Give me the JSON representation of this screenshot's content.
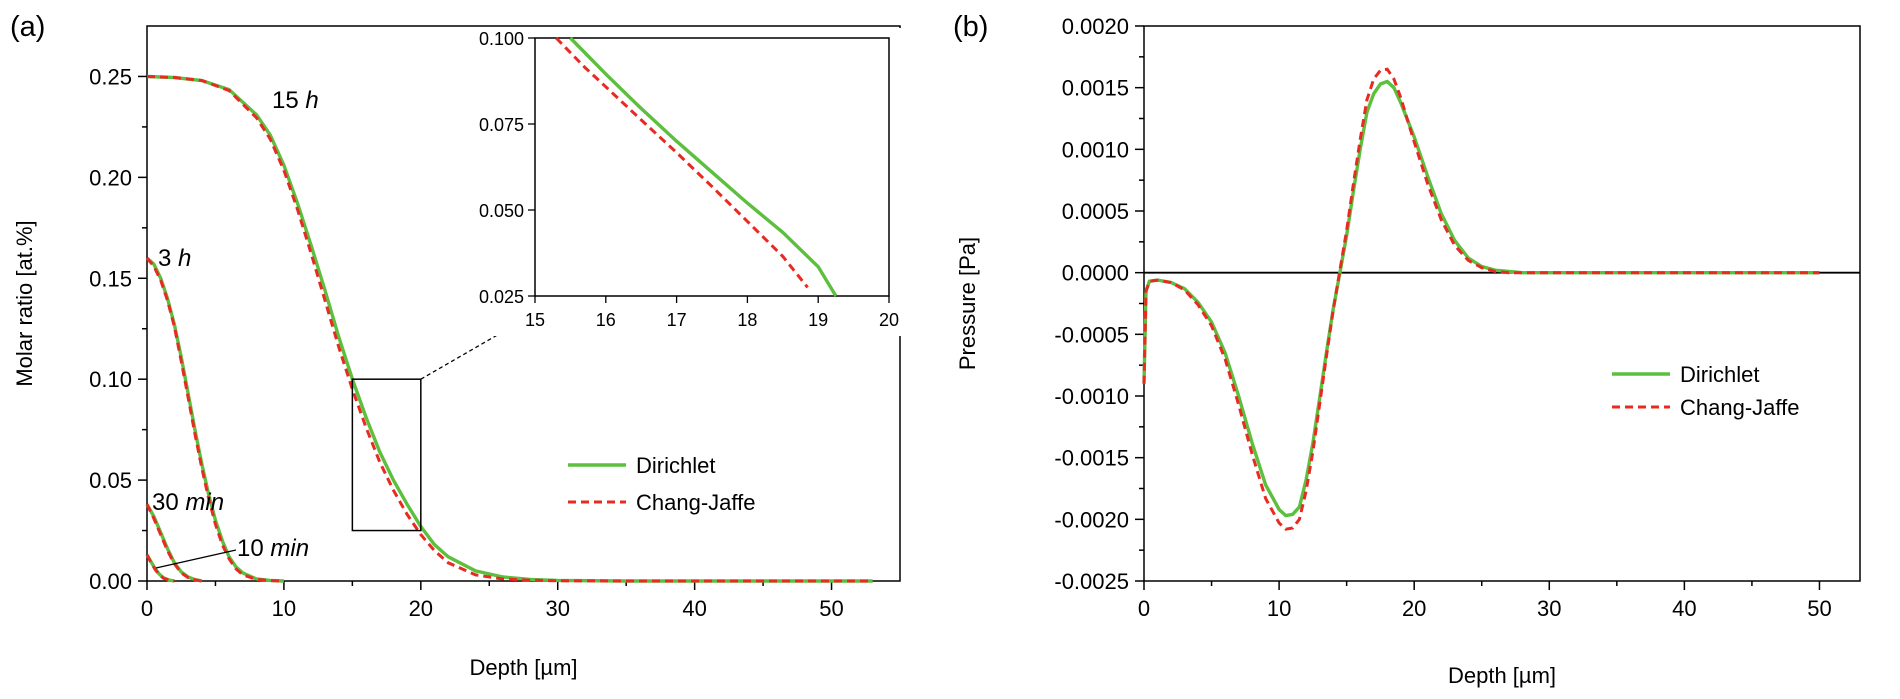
{
  "figure": {
    "panel_a_label": "(a)",
    "panel_b_label": "(b)"
  },
  "colors": {
    "dirichlet": "#5cbf3e",
    "chang_jaffe": "#e82a22",
    "axis": "#000000"
  },
  "chart_data": [
    {
      "type": "line",
      "panel": "(a)",
      "title": "",
      "xlabel": "Depth [µm]",
      "ylabel": "Molar ratio [at.%]",
      "xlim": [
        0,
        55
      ],
      "ylim": [
        0,
        0.275
      ],
      "xticks": [
        "0",
        "10",
        "20",
        "30",
        "40",
        "50"
      ],
      "yticks": [
        "0.00",
        "0.05",
        "0.10",
        "0.15",
        "0.20",
        "0.25"
      ],
      "legend": {
        "position": "center-right",
        "entries": [
          "Dirichlet",
          "Chang-Jaffe"
        ]
      },
      "annotations": [
        {
          "num": "15",
          "unit": "h"
        },
        {
          "num": "3",
          "unit": "h"
        },
        {
          "num": "30",
          "unit": "min"
        },
        {
          "num": "10",
          "unit": "min"
        }
      ],
      "zoom_box": {
        "x": [
          15,
          20
        ],
        "y": [
          0.025,
          0.1
        ]
      },
      "series": [
        {
          "name": "Dirichlet",
          "curve": "15 h",
          "x": [
            0,
            2,
            4,
            6,
            8,
            9,
            10,
            11,
            12,
            13,
            14,
            15,
            16,
            17,
            18,
            19,
            20,
            21,
            22,
            24,
            26,
            28,
            30,
            35,
            40,
            45,
            50,
            53
          ],
          "y": [
            0.25,
            0.2495,
            0.248,
            0.2435,
            0.231,
            0.221,
            0.206,
            0.187,
            0.166,
            0.144,
            0.121,
            0.1,
            0.081,
            0.064,
            0.05,
            0.038,
            0.027,
            0.018,
            0.012,
            0.005,
            0.002,
            0.0008,
            0.0003,
            0,
            0,
            0,
            0,
            0
          ]
        },
        {
          "name": "Chang-Jaffe",
          "curve": "15 h",
          "x": [
            0,
            2,
            4,
            6,
            8,
            9,
            10,
            11,
            12,
            13,
            14,
            15,
            16,
            17,
            18,
            19,
            20,
            21,
            22,
            24,
            26,
            28,
            30,
            35,
            40,
            45,
            50,
            53
          ],
          "y": [
            0.25,
            0.2495,
            0.248,
            0.243,
            0.2295,
            0.219,
            0.2035,
            0.184,
            0.162,
            0.139,
            0.116,
            0.095,
            0.076,
            0.059,
            0.045,
            0.033,
            0.023,
            0.015,
            0.009,
            0.003,
            0.001,
            0.0004,
            0.0001,
            0,
            0,
            0,
            0,
            0
          ]
        },
        {
          "name": "Dirichlet",
          "curve": "3 h",
          "x": [
            0,
            0.5,
            1,
            1.5,
            2,
            2.5,
            3,
            3.5,
            4,
            4.5,
            5,
            5.5,
            6,
            6.5,
            7,
            8,
            9,
            10
          ],
          "y": [
            0.16,
            0.157,
            0.15,
            0.14,
            0.127,
            0.111,
            0.093,
            0.075,
            0.058,
            0.043,
            0.03,
            0.02,
            0.012,
            0.007,
            0.004,
            0.001,
            0.0003,
            0
          ]
        },
        {
          "name": "Chang-Jaffe",
          "curve": "3 h",
          "x": [
            0,
            0.5,
            1,
            1.5,
            2,
            2.5,
            3,
            3.5,
            4,
            4.5,
            5,
            5.5,
            6,
            6.5,
            7,
            8,
            9,
            10
          ],
          "y": [
            0.16,
            0.156,
            0.149,
            0.139,
            0.126,
            0.109,
            0.091,
            0.073,
            0.056,
            0.041,
            0.028,
            0.018,
            0.011,
            0.006,
            0.003,
            0.0008,
            0.0002,
            0
          ]
        },
        {
          "name": "Dirichlet",
          "curve": "30 min",
          "x": [
            0,
            0.5,
            1,
            1.5,
            2,
            2.5,
            3,
            3.5,
            4
          ],
          "y": [
            0.038,
            0.032,
            0.024,
            0.016,
            0.009,
            0.0045,
            0.002,
            0.0007,
            0
          ]
        },
        {
          "name": "Chang-Jaffe",
          "curve": "30 min",
          "x": [
            0,
            0.5,
            1,
            1.5,
            2,
            2.5,
            3,
            3.5,
            4
          ],
          "y": [
            0.038,
            0.031,
            0.023,
            0.015,
            0.0085,
            0.004,
            0.0017,
            0.0006,
            0
          ]
        },
        {
          "name": "Dirichlet",
          "curve": "10 min",
          "x": [
            0,
            0.3,
            0.6,
            0.9,
            1.2,
            1.6,
            2
          ],
          "y": [
            0.013,
            0.0095,
            0.006,
            0.0034,
            0.0016,
            0.0005,
            0
          ]
        },
        {
          "name": "Chang-Jaffe",
          "curve": "10 min",
          "x": [
            0,
            0.3,
            0.6,
            0.9,
            1.2,
            1.6,
            2
          ],
          "y": [
            0.013,
            0.009,
            0.0057,
            0.0031,
            0.0014,
            0.0004,
            0
          ]
        }
      ]
    },
    {
      "type": "line",
      "panel": "(a) inset",
      "title": "",
      "xlabel": "",
      "ylabel": "",
      "xlim": [
        15,
        20
      ],
      "ylim": [
        0.025,
        0.1
      ],
      "xticks": [
        "15",
        "16",
        "17",
        "18",
        "19",
        "20"
      ],
      "yticks": [
        "0.025",
        "0.050",
        "0.075",
        "0.100"
      ],
      "series": [
        {
          "name": "Dirichlet",
          "x": [
            15.5,
            16,
            16.5,
            17,
            17.5,
            18,
            18.5,
            19,
            19.25
          ],
          "y": [
            0.1,
            0.0895,
            0.0795,
            0.07,
            0.061,
            0.052,
            0.0435,
            0.0335,
            0.025
          ]
        },
        {
          "name": "Chang-Jaffe",
          "x": [
            15.3,
            15.7,
            16,
            16.5,
            17,
            17.5,
            18,
            18.5,
            18.85
          ],
          "y": [
            0.1,
            0.0915,
            0.0858,
            0.0762,
            0.0667,
            0.0568,
            0.0467,
            0.0365,
            0.0275
          ]
        }
      ]
    },
    {
      "type": "line",
      "panel": "(b)",
      "title": "",
      "xlabel": "Depth [µm]",
      "ylabel": "Pressure [Pa]",
      "xlim": [
        0,
        53
      ],
      "ylim": [
        -0.0025,
        0.002
      ],
      "xticks": [
        "0",
        "10",
        "20",
        "30",
        "40",
        "50"
      ],
      "yticks": [
        "-0.0025",
        "-0.0020",
        "-0.0015",
        "-0.0010",
        "-0.0005",
        "0.0000",
        "0.0005",
        "0.0010",
        "0.0015",
        "0.0020"
      ],
      "reference_line_y": 0,
      "legend": {
        "position": "center-right",
        "entries": [
          "Dirichlet",
          "Chang-Jaffe"
        ]
      },
      "series": [
        {
          "name": "Dirichlet",
          "x": [
            0,
            0.15,
            0.4,
            1,
            2,
            3,
            4,
            5,
            6,
            7,
            8,
            9,
            10,
            10.5,
            11,
            11.5,
            12,
            12.5,
            13,
            13.5,
            14,
            14.5,
            15,
            15.5,
            16,
            16.5,
            17,
            17.5,
            18,
            18.5,
            19,
            19.5,
            20,
            21,
            22,
            23,
            24,
            25,
            26,
            27,
            28,
            30,
            35,
            40,
            45,
            50
          ],
          "y": [
            -0.0009,
            -0.00015,
            -7e-05,
            -6e-05,
            -8e-05,
            -0.00013,
            -0.00024,
            -0.0004,
            -0.00065,
            -0.001,
            -0.00138,
            -0.00172,
            -0.00192,
            -0.00197,
            -0.00196,
            -0.0019,
            -0.00168,
            -0.00138,
            -0.00102,
            -0.00065,
            -0.0003,
            0,
            0.0003,
            0.00066,
            0.001,
            0.0013,
            0.00145,
            0.00153,
            0.00155,
            0.0015,
            0.00138,
            0.00124,
            0.0011,
            0.00078,
            0.00048,
            0.00026,
            0.00012,
            5e-05,
            2e-05,
            1e-05,
            0,
            0,
            0,
            0,
            0,
            0
          ]
        },
        {
          "name": "Chang-Jaffe",
          "x": [
            0,
            0.15,
            0.4,
            1,
            2,
            3,
            4,
            5,
            6,
            7,
            8,
            9,
            10,
            10.5,
            11,
            11.5,
            12,
            12.5,
            13,
            13.5,
            14,
            14.5,
            15,
            15.5,
            16,
            16.5,
            17,
            17.5,
            18,
            18.5,
            19,
            19.5,
            20,
            21,
            22,
            23,
            24,
            25,
            26,
            27,
            28,
            30,
            35,
            40,
            45,
            50
          ],
          "y": [
            -0.0009,
            -0.00015,
            -7e-05,
            -6e-05,
            -8e-05,
            -0.00014,
            -0.00026,
            -0.00043,
            -0.0007,
            -0.00107,
            -0.00147,
            -0.00183,
            -0.00203,
            -0.00208,
            -0.00207,
            -0.002,
            -0.00177,
            -0.00145,
            -0.00107,
            -0.00068,
            -0.00031,
            2e-05,
            0.00034,
            0.00072,
            0.00108,
            0.0014,
            0.00157,
            0.00164,
            0.00165,
            0.00157,
            0.00142,
            0.00124,
            0.00106,
            0.00072,
            0.00043,
            0.00022,
            0.0001,
            4e-05,
            1e-05,
            0,
            0,
            0,
            0,
            0,
            0,
            0
          ]
        }
      ]
    }
  ]
}
